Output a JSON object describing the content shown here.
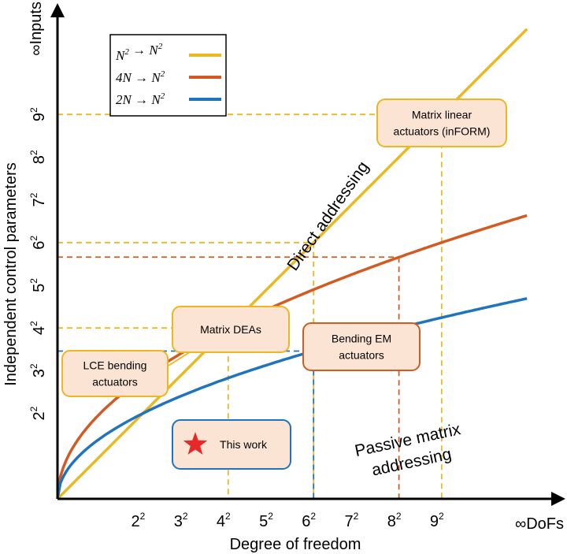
{
  "chart_data": {
    "type": "line",
    "title": "",
    "xlabel": "Degree of freedom",
    "ylabel": "Independent control parameters",
    "x_end_label": "∞DoFs",
    "y_end_label": "∞Inputs",
    "x_ticks": [
      {
        "base": "2",
        "exp": "2",
        "n": 2
      },
      {
        "base": "3",
        "exp": "2",
        "n": 3
      },
      {
        "base": "4",
        "exp": "2",
        "n": 4
      },
      {
        "base": "5",
        "exp": "2",
        "n": 5
      },
      {
        "base": "6",
        "exp": "2",
        "n": 6
      },
      {
        "base": "7",
        "exp": "2",
        "n": 7
      },
      {
        "base": "8",
        "exp": "2",
        "n": 8
      },
      {
        "base": "9",
        "exp": "2",
        "n": 9
      }
    ],
    "y_ticks": [
      {
        "base": "2",
        "exp": "2",
        "n": 2
      },
      {
        "base": "3",
        "exp": "2",
        "n": 3
      },
      {
        "base": "4",
        "exp": "2",
        "n": 4
      },
      {
        "base": "5",
        "exp": "2",
        "n": 5
      },
      {
        "base": "6",
        "exp": "2",
        "n": 6
      },
      {
        "base": "7",
        "exp": "2",
        "n": 7
      },
      {
        "base": "8",
        "exp": "2",
        "n": 8
      },
      {
        "base": "9",
        "exp": "2",
        "n": 9
      }
    ],
    "series": [
      {
        "name": "N² → N²",
        "legend_in": "N",
        "legend_out": "N",
        "coef": 1,
        "power": 1,
        "color": "#EDB722"
      },
      {
        "name": "4N → N²",
        "legend_in": "4N",
        "legend_out": "N",
        "coef": 4,
        "power": 0.5,
        "color": "#D35A22"
      },
      {
        "name": "2N → N²",
        "legend_in": "2N",
        "legend_out": "N",
        "coef": 2,
        "power": 0.5,
        "color": "#1F74BD"
      }
    ],
    "curve_labels": {
      "direct": "Direct addressing",
      "passive_line1": "Passive matrix",
      "passive_line2": "addressing"
    },
    "annotations": [
      {
        "id": "inform",
        "lines": [
          "Matrix linear",
          "actuators (inFORM)"
        ],
        "x": 9,
        "y": 9,
        "series": "N² → N²",
        "border": "#EDB722",
        "fill": "#FCE4D4"
      },
      {
        "id": "dea",
        "lines": [
          "Matrix DEAs"
        ],
        "x": 6,
        "y": 6,
        "series": "N² → N²",
        "border": "#EDB722",
        "fill": "#FCE4D4"
      },
      {
        "id": "em",
        "lines": [
          "Bending EM",
          "actuators"
        ],
        "x": 8,
        "y": 5.66,
        "series": "4N → N²",
        "border": "#D35A22",
        "fill": "#FCE4D4"
      },
      {
        "id": "lce",
        "lines": [
          "LCE bending",
          "actuators"
        ],
        "x": 4,
        "y": 4,
        "series": "N² → N²",
        "border": "#EDB722",
        "fill": "#FCE4D4"
      },
      {
        "id": "thiswork",
        "lines": [
          "This work"
        ],
        "x": 6,
        "y": 3.46,
        "series": "2N → N²",
        "border": "#1F74BD",
        "fill": "#FCE4D4",
        "star_color": "#E82828"
      }
    ]
  }
}
